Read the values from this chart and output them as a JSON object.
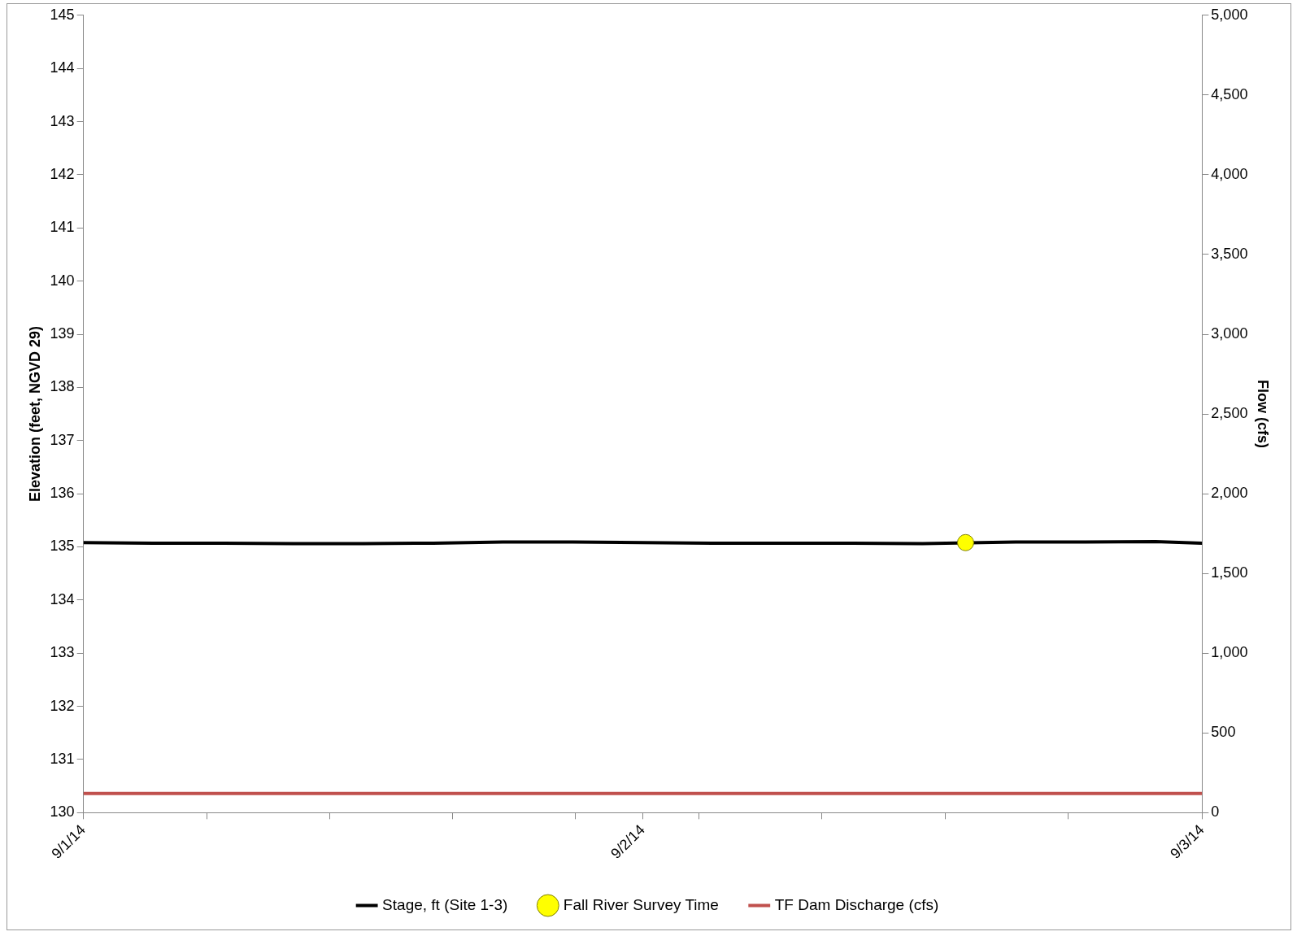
{
  "chart_data": {
    "type": "line",
    "ylabel": "Elevation (feet, NGVD 29)",
    "y2label": "Flow (cfs)",
    "xlim": [
      "--09-01T00:00",
      "--09-03T00:00"
    ],
    "xticks": [
      {
        "value": "--09-01T00:00",
        "label": "9/1/14"
      },
      {
        "value": "--09-01T05:17",
        "label": null
      },
      {
        "value": "--09-01T10:34",
        "label": null
      },
      {
        "value": "--09-01T15:50",
        "label": null
      },
      {
        "value": "--09-01T21:07",
        "label": null
      },
      {
        "value": "--09-02T00:00",
        "label": "9/2/14"
      },
      {
        "value": "--09-02T02:24",
        "label": null
      },
      {
        "value": "--09-02T07:41",
        "label": null
      },
      {
        "value": "--09-02T12:58",
        "label": null
      },
      {
        "value": "--09-02T18:14",
        "label": null
      },
      {
        "value": "--09-03T00:00",
        "label": "9/3/14"
      }
    ],
    "ylim": [
      130,
      145
    ],
    "yticks": [
      130,
      131,
      132,
      133,
      134,
      135,
      136,
      137,
      138,
      139,
      140,
      141,
      142,
      143,
      144,
      145
    ],
    "y2lim": [
      0,
      5000
    ],
    "y2ticks": [
      {
        "value": 0,
        "label": "0"
      },
      {
        "value": 500,
        "label": "500"
      },
      {
        "value": 1000,
        "label": "1,000"
      },
      {
        "value": 1500,
        "label": "1,500"
      },
      {
        "value": 2000,
        "label": "2,000"
      },
      {
        "value": 2500,
        "label": "2,500"
      },
      {
        "value": 3000,
        "label": "3,000"
      },
      {
        "value": 3500,
        "label": "3,500"
      },
      {
        "value": 4000,
        "label": "4,000"
      },
      {
        "value": 4500,
        "label": "4,500"
      },
      {
        "value": 5000,
        "label": "5,000"
      }
    ],
    "grid": false,
    "legend": "bottom",
    "series": [
      {
        "name": "Stage, ft (Site 1-3)",
        "color": "#000000",
        "marker": "none",
        "x": [
          "--09-01T00:00",
          "--09-01T03:00",
          "--09-01T06:00",
          "--09-01T09:00",
          "--09-01T12:00",
          "--09-01T15:00",
          "--09-01T18:00",
          "--09-01T21:00",
          "--09-02T00:00",
          "--09-02T03:00",
          "--09-02T06:00",
          "--09-02T09:00",
          "--09-02T12:00",
          "--09-02T16:00",
          "--09-02T19:00",
          "--09-02T22:00",
          "--09-03T00:00"
        ],
        "values": [
          135.08,
          135.07,
          135.07,
          135.06,
          135.06,
          135.07,
          135.09,
          135.09,
          135.08,
          135.07,
          135.07,
          135.07,
          135.06,
          135.09,
          135.09,
          135.1,
          135.07
        ]
      },
      {
        "name": "Fall River Survey Time",
        "type": "scatter",
        "color": "#ffff00",
        "marker": "circle",
        "x": [
          "--09-02T13:51"
        ],
        "values": [
          135.08
        ]
      },
      {
        "name": "TF Dam Discharge (cfs)",
        "color": "#c0504d",
        "marker": "none",
        "axis": "y2",
        "x": [
          "--09-01T00:00",
          "--09-03T00:00"
        ],
        "values": [
          120,
          120
        ]
      }
    ]
  }
}
